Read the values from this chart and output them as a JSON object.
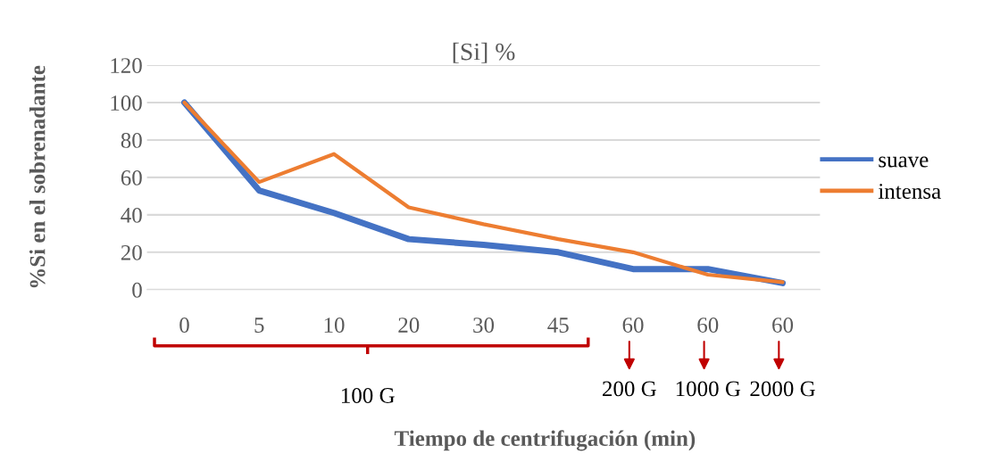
{
  "chart_data": {
    "type": "line",
    "title": "[Si] %",
    "xlabel": "Tiempo de centrifugación (min)",
    "ylabel": "%Si en el sobrenadante",
    "categories": [
      "0",
      "5",
      "10",
      "20",
      "30",
      "45",
      "60",
      "60",
      "60"
    ],
    "series": [
      {
        "name": "suave",
        "color": "#4472c4",
        "values": [
          100,
          53,
          41,
          27,
          24,
          20,
          11,
          11,
          3.5
        ]
      },
      {
        "name": "intensa",
        "color": "#ed7d31",
        "values": [
          100,
          57.5,
          72.5,
          44,
          35,
          27,
          20,
          8,
          4
        ]
      }
    ],
    "ylim": [
      0,
      120
    ],
    "yticks": [
      0,
      20,
      40,
      60,
      80,
      100,
      120
    ],
    "grid": "y",
    "legend": "right",
    "marker": "none",
    "line_style": "solid",
    "annotations": [
      "100 G",
      "200 G",
      "1000 G",
      "2000 G"
    ]
  }
}
